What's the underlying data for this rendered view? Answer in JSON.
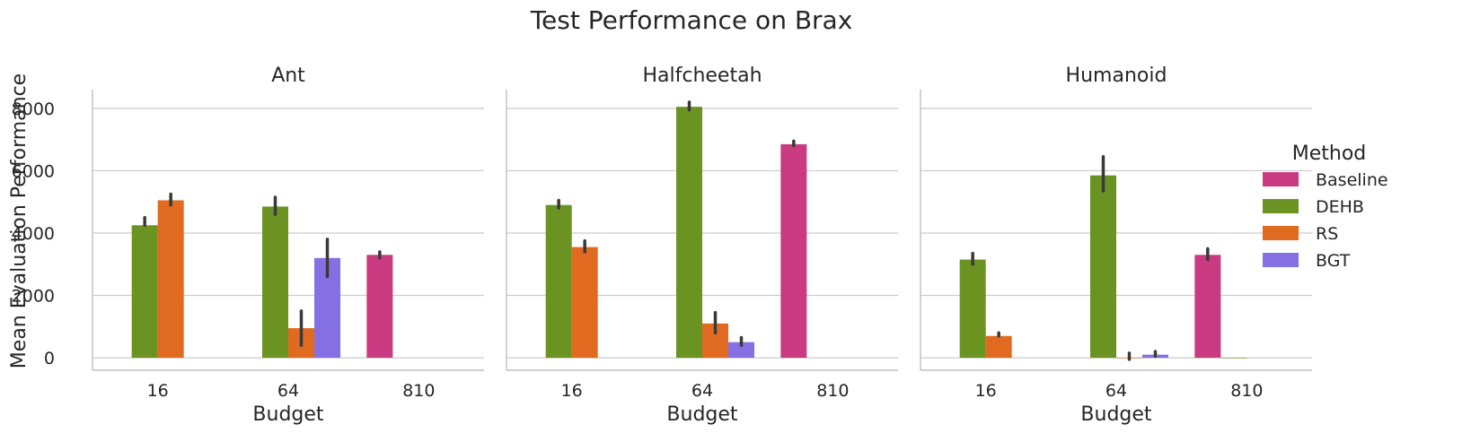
{
  "chart_data": {
    "type": "bar",
    "title": "Test Performance on Brax",
    "xlabel": "Budget",
    "ylabel": "Mean Evaluation Performance",
    "categories": [
      "16",
      "64",
      "810"
    ],
    "ylim": [
      -400,
      8600
    ],
    "yticks": [
      0,
      2000,
      4000,
      6000,
      8000
    ],
    "grid": "horizontal",
    "legend": {
      "title": "Method",
      "placement": "right"
    },
    "methods": [
      {
        "name": "Baseline",
        "color": "#c93a80"
      },
      {
        "name": "DEHB",
        "color": "#6b9322"
      },
      {
        "name": "RS",
        "color": "#e06a1f"
      },
      {
        "name": "BGT",
        "color": "#8470e3"
      }
    ],
    "panels": [
      {
        "title": "Ant",
        "series": [
          {
            "name": "Baseline",
            "values": [
              null,
              null,
              3300
            ],
            "err_low": [
              null,
              null,
              3200
            ],
            "err_high": [
              null,
              null,
              3400
            ]
          },
          {
            "name": "DEHB",
            "values": [
              4250,
              4850,
              null
            ],
            "err_low": [
              null,
              4600,
              null
            ],
            "err_high": [
              4500,
              5150,
              null
            ]
          },
          {
            "name": "RS",
            "values": [
              5050,
              950,
              null
            ],
            "err_low": [
              4900,
              400,
              null
            ],
            "err_high": [
              5250,
              1500,
              null
            ]
          },
          {
            "name": "BGT",
            "values": [
              null,
              3200,
              null
            ],
            "err_low": [
              null,
              2600,
              null
            ],
            "err_high": [
              null,
              3800,
              null
            ]
          }
        ]
      },
      {
        "title": "Halfcheetah",
        "series": [
          {
            "name": "Baseline",
            "values": [
              null,
              null,
              6850
            ],
            "err_low": [
              null,
              null,
              6800
            ],
            "err_high": [
              null,
              null,
              6950
            ]
          },
          {
            "name": "DEHB",
            "values": [
              4900,
              8050,
              null
            ],
            "err_low": [
              4800,
              7950,
              null
            ],
            "err_high": [
              5050,
              8200,
              null
            ]
          },
          {
            "name": "RS",
            "values": [
              3550,
              1100,
              null
            ],
            "err_low": [
              3400,
              800,
              null
            ],
            "err_high": [
              3750,
              1450,
              null
            ]
          },
          {
            "name": "BGT",
            "values": [
              null,
              500,
              null
            ],
            "err_low": [
              null,
              400,
              null
            ],
            "err_high": [
              null,
              650,
              null
            ]
          }
        ]
      },
      {
        "title": "Humanoid",
        "series": [
          {
            "name": "Baseline",
            "values": [
              null,
              null,
              3300
            ],
            "err_low": [
              null,
              null,
              3150
            ],
            "err_high": [
              null,
              null,
              3500
            ]
          },
          {
            "name": "DEHB",
            "values": [
              3150,
              5850,
              0
            ],
            "err_low": [
              3000,
              5350,
              null
            ],
            "err_high": [
              3350,
              6450,
              null
            ]
          },
          {
            "name": "RS",
            "values": [
              700,
              0,
              null
            ],
            "err_low": [
              null,
              -50,
              null
            ],
            "err_high": [
              800,
              150,
              null
            ]
          },
          {
            "name": "BGT",
            "values": [
              null,
              100,
              null
            ],
            "err_low": [
              null,
              50,
              null
            ],
            "err_high": [
              null,
              200,
              null
            ]
          }
        ]
      }
    ]
  }
}
